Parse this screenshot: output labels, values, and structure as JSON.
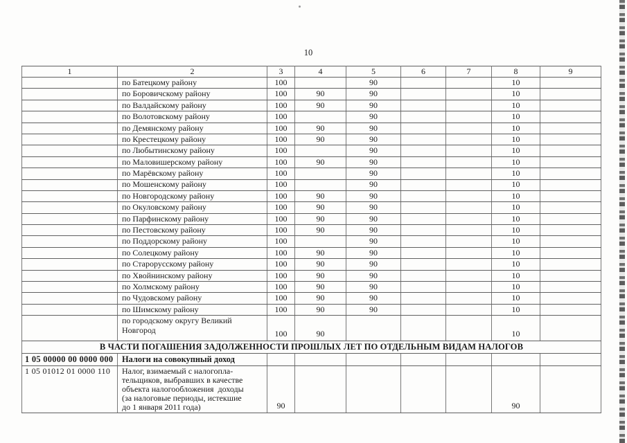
{
  "page": {
    "number": "10"
  },
  "table": {
    "column_headers": [
      "1",
      "2",
      "3",
      "4",
      "5",
      "6",
      "7",
      "8",
      "9"
    ],
    "district_rows": [
      {
        "name": "по Батецкому району",
        "c3": "100",
        "c4": "",
        "c5": "90",
        "c8": "10"
      },
      {
        "name": "по Боровичскому району",
        "c3": "100",
        "c4": "90",
        "c5": "90",
        "c8": "10"
      },
      {
        "name": "по Валдайскому району",
        "c3": "100",
        "c4": "90",
        "c5": "90",
        "c8": "10"
      },
      {
        "name": "по Волотовскому району",
        "c3": "100",
        "c4": "",
        "c5": "90",
        "c8": "10"
      },
      {
        "name": "по Демянскому району",
        "c3": "100",
        "c4": "90",
        "c5": "90",
        "c8": "10"
      },
      {
        "name": "по Крестецкому району",
        "c3": "100",
        "c4": "90",
        "c5": "90",
        "c8": "10"
      },
      {
        "name": "по Любытинскому району",
        "c3": "100",
        "c4": "",
        "c5": "90",
        "c8": "10"
      },
      {
        "name": "по Маловишерскому району",
        "c3": "100",
        "c4": "90",
        "c5": "90",
        "c8": "10"
      },
      {
        "name": "по Марёвскому району",
        "c3": "100",
        "c4": "",
        "c5": "90",
        "c8": "10"
      },
      {
        "name": "по Мошенскому району",
        "c3": "100",
        "c4": "",
        "c5": "90",
        "c8": "10"
      },
      {
        "name": "по Новгородскому району",
        "c3": "100",
        "c4": "90",
        "c5": "90",
        "c8": "10"
      },
      {
        "name": "по Окуловскому району",
        "c3": "100",
        "c4": "90",
        "c5": "90",
        "c8": "10"
      },
      {
        "name": "по Парфинскому району",
        "c3": "100",
        "c4": "90",
        "c5": "90",
        "c8": "10"
      },
      {
        "name": "по Пестовскому району",
        "c3": "100",
        "c4": "90",
        "c5": "90",
        "c8": "10"
      },
      {
        "name": "по Поддорскому району",
        "c3": "100",
        "c4": "",
        "c5": "90",
        "c8": "10"
      },
      {
        "name": "по Солецкому району",
        "c3": "100",
        "c4": "90",
        "c5": "90",
        "c8": "10"
      },
      {
        "name": "по Старорусскому району",
        "c3": "100",
        "c4": "90",
        "c5": "90",
        "c8": "10"
      },
      {
        "name": "по Хвойнинскому району",
        "c3": "100",
        "c4": "90",
        "c5": "90",
        "c8": "10"
      },
      {
        "name": "по Холмскому району",
        "c3": "100",
        "c4": "90",
        "c5": "90",
        "c8": "10"
      },
      {
        "name": "по Чудовскому району",
        "c3": "100",
        "c4": "90",
        "c5": "90",
        "c8": "10"
      },
      {
        "name": "по Шимскому району",
        "c3": "100",
        "c4": "90",
        "c5": "90",
        "c8": "10"
      }
    ],
    "city_row": {
      "name": "по городскому округу Великий\nНовгород",
      "c3": "100",
      "c4": "90",
      "c8": "10"
    },
    "section_header": "В ЧАСТИ ПОГАШЕНИЯ ЗАДОЛЖЕННОСТИ ПРОШЛЫХ ЛЕТ ПО ОТДЕЛЬНЫМ ВИДАМ НАЛОГОВ",
    "summary_row": {
      "code": "1 05 00000 00 0000 000",
      "name": "Налоги на совокупный доход"
    },
    "detail_row": {
      "code": "1 05 01012 01 0000 110",
      "name": "Налог, взимаемый с налогопла-\nтельщиков, выбравших в качестве\nобъекта налогообложения  доходы\n(за налоговые периоды, истекшие\nдо 1 января 2011 года)",
      "c3": "90",
      "c8": "90"
    }
  }
}
